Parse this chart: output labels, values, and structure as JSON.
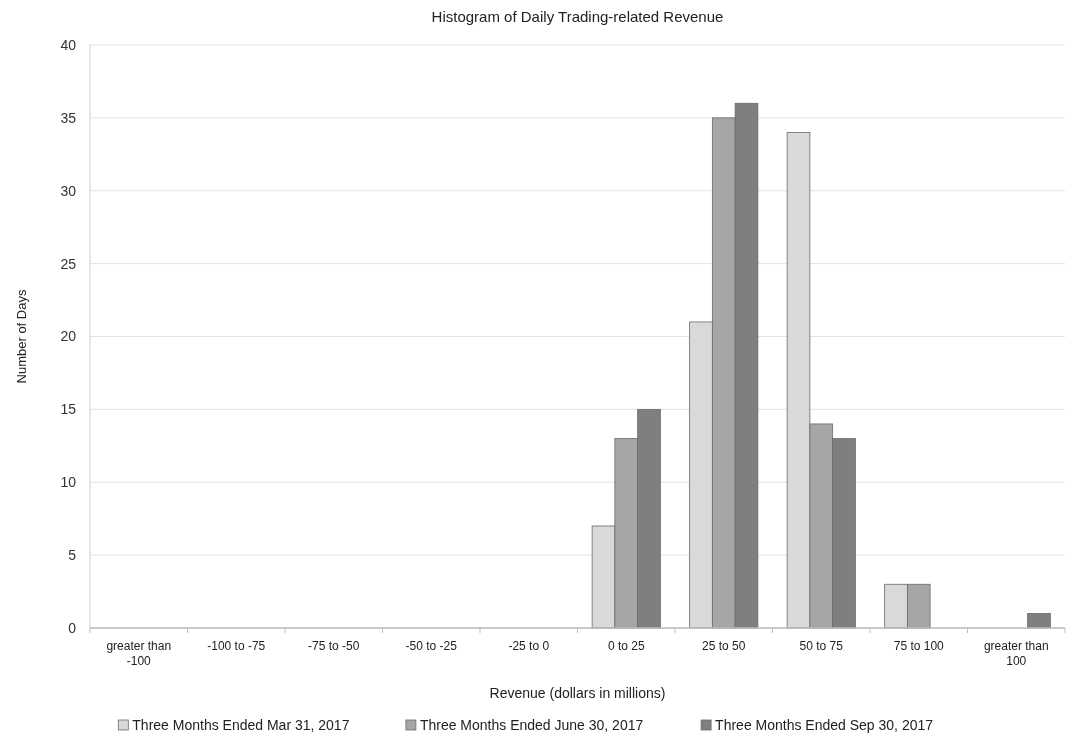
{
  "chart_data": {
    "type": "bar",
    "title": "Histogram of Daily Trading-related Revenue",
    "xlabel": "Revenue (dollars in millions)",
    "ylabel": "Number of Days",
    "categories": [
      "greater than -100",
      "-100 to -75",
      "-75 to -50",
      "-50 to -25",
      "-25 to 0",
      "0 to 25",
      "25 to 50",
      "50 to 75",
      "75 to 100",
      "greater than 100"
    ],
    "series": [
      {
        "name": "Three Months Ended Mar 31, 2017",
        "color": "#d9d9d9",
        "values": [
          0,
          0,
          0,
          0,
          0,
          7,
          21,
          34,
          3,
          0
        ]
      },
      {
        "name": "Three Months Ended June 30, 2017",
        "color": "#a6a6a6",
        "values": [
          0,
          0,
          0,
          0,
          0,
          13,
          35,
          14,
          3,
          0
        ]
      },
      {
        "name": "Three Months Ended Sep 30, 2017",
        "color": "#7f7f7f",
        "values": [
          0,
          0,
          0,
          0,
          0,
          15,
          36,
          13,
          0,
          1
        ]
      }
    ],
    "ylim": [
      0,
      40
    ],
    "yticks": [
      0,
      5,
      10,
      15,
      20,
      25,
      30,
      35,
      40
    ],
    "grid": "y",
    "legend": "bottom"
  }
}
